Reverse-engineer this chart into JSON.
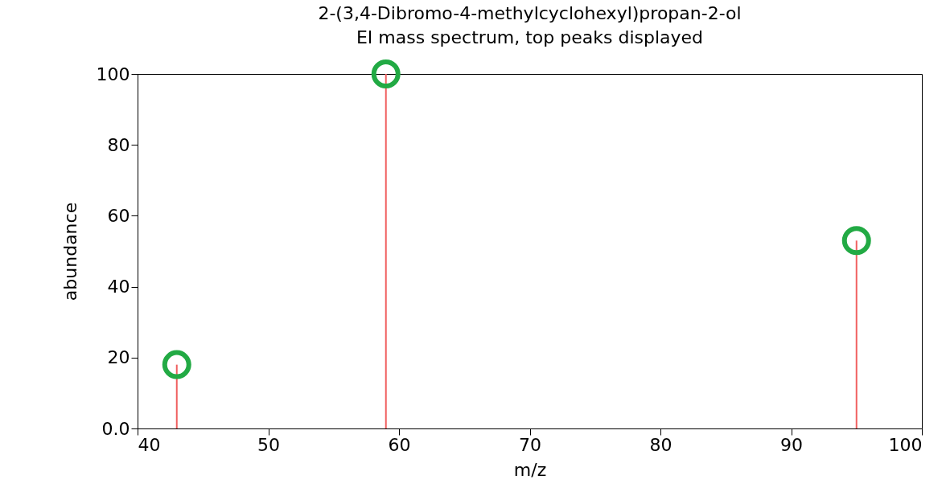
{
  "chart_data": {
    "type": "bar",
    "title": "2-(3,4-Dibromo-4-methylcyclohexyl)propan-2-ol",
    "subtitle": "EI mass spectrum, top peaks displayed",
    "xlabel": "m/z",
    "ylabel": "abundance",
    "x": [
      43,
      59,
      95
    ],
    "series": [
      {
        "color": "#f06060",
        "values": [
          18,
          100,
          53
        ]
      },
      {
        "type": "scatter",
        "color": "#22aa44",
        "marker": "circle",
        "values": [
          18,
          100,
          53
        ]
      }
    ],
    "xlim": [
      40,
      100
    ],
    "xticks": [
      40,
      50,
      60,
      70,
      80,
      90,
      100
    ],
    "ylim": [
      0,
      100
    ],
    "yticks": [
      {
        "value": 0,
        "label": "0.0"
      },
      20,
      40,
      60,
      80,
      100
    ],
    "grid": false
  }
}
